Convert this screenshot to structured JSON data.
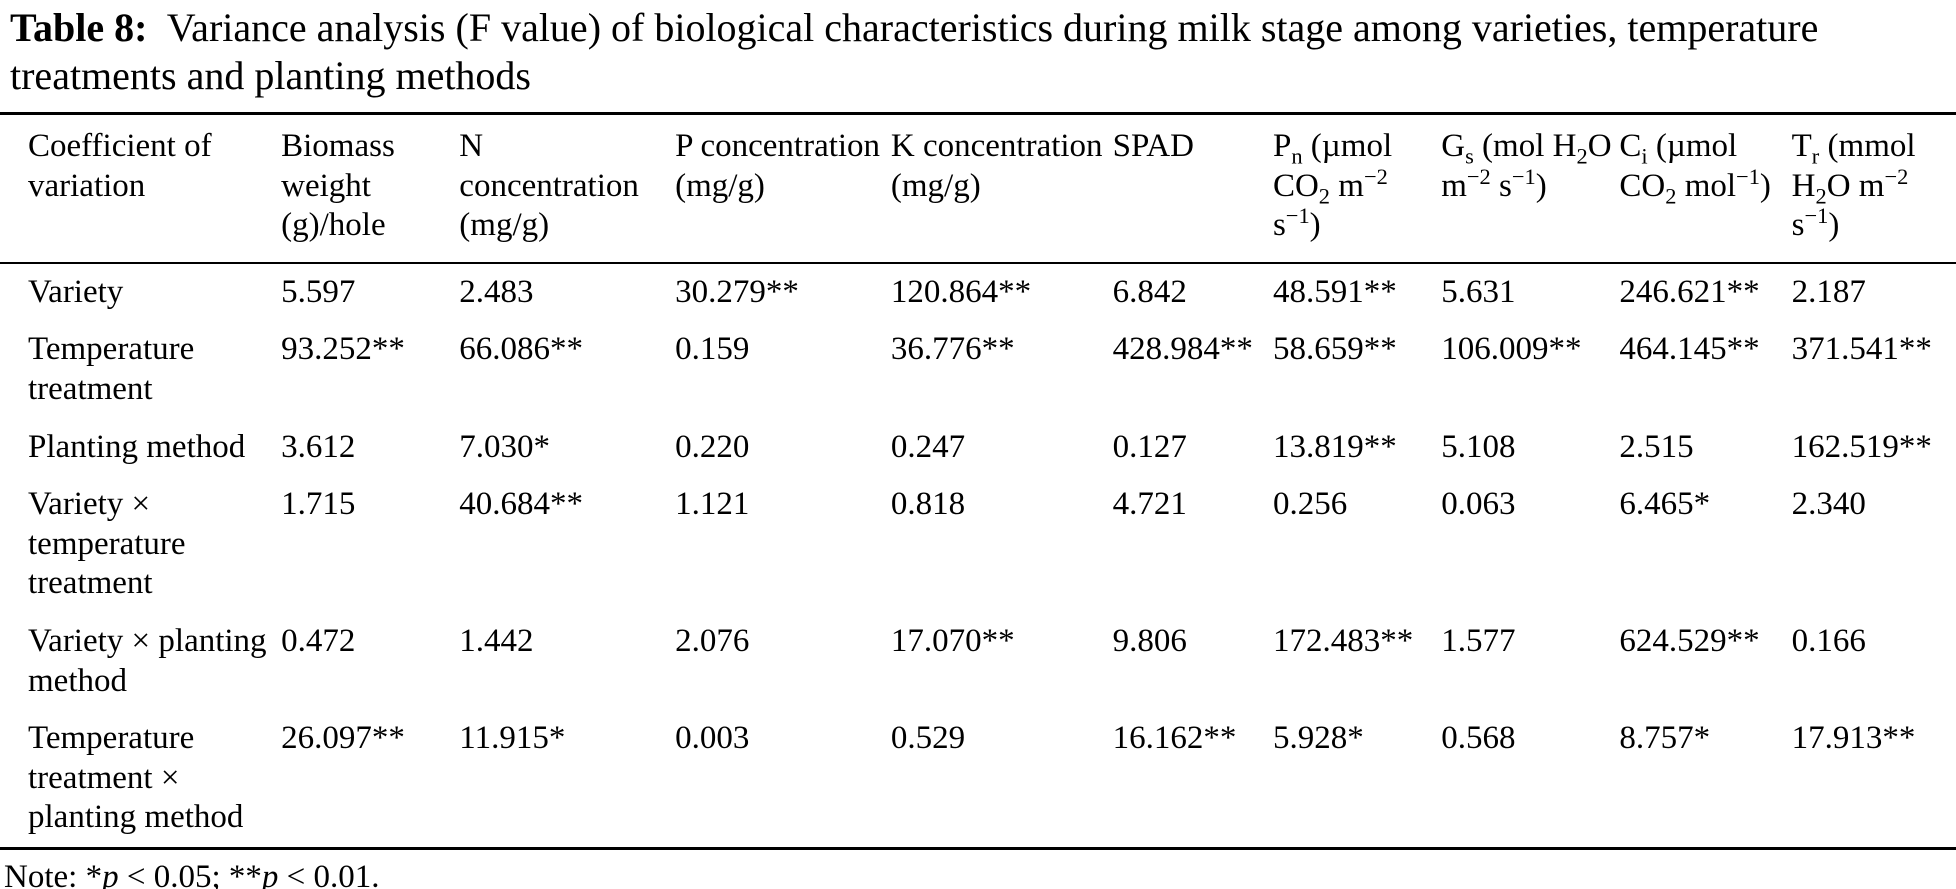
{
  "caption": {
    "parts": [
      {
        "t": "Table 8:",
        "s": "b"
      },
      {
        "t": " Variance analysis (F value) of biological characteristics during milk stage among varieties, temperature treatments and planting methods"
      }
    ]
  },
  "table": {
    "columns": [
      {
        "text": "Coefficient of variation",
        "parts": [
          {
            "t": "Coefficient of variation"
          }
        ]
      },
      {
        "text": "Biomass weight (g)/hole",
        "parts": [
          {
            "t": "Biomass weight (g)/hole"
          }
        ]
      },
      {
        "text": "N concentration (mg/g)",
        "parts": [
          {
            "t": "N concentration (mg/g)"
          }
        ]
      },
      {
        "text": "P concentration (mg/g)",
        "parts": [
          {
            "t": "P concentration (mg/g)"
          }
        ]
      },
      {
        "text": "K concentration (mg/g)",
        "parts": [
          {
            "t": "K concentration (mg/g)"
          }
        ]
      },
      {
        "text": "SPAD",
        "parts": [
          {
            "t": "SPAD"
          }
        ]
      },
      {
        "text": "Pn (µmol CO2 m−2 s−1)",
        "parts": [
          {
            "t": "P"
          },
          {
            "t": "n",
            "s": "sub"
          },
          {
            "t": " (µmol CO"
          },
          {
            "t": "2",
            "s": "sub"
          },
          {
            "t": " m"
          },
          {
            "t": "−2",
            "s": "sup"
          },
          {
            "t": " s"
          },
          {
            "t": "−1",
            "s": "sup"
          },
          {
            "t": ")"
          }
        ]
      },
      {
        "text": "Gs (mol H2O m−2 s−1)",
        "parts": [
          {
            "t": "G"
          },
          {
            "t": "s",
            "s": "sub"
          },
          {
            "t": " (mol H"
          },
          {
            "t": "2",
            "s": "sub"
          },
          {
            "t": "O m"
          },
          {
            "t": "−2",
            "s": "sup"
          },
          {
            "t": " s"
          },
          {
            "t": "−1",
            "s": "sup"
          },
          {
            "t": ")"
          }
        ]
      },
      {
        "text": "Ci (µmol CO2 mol−1)",
        "parts": [
          {
            "t": "C"
          },
          {
            "t": "i",
            "s": "sub"
          },
          {
            "t": " (µmol CO"
          },
          {
            "t": "2",
            "s": "sub"
          },
          {
            "t": " mol"
          },
          {
            "t": "−1",
            "s": "sup"
          },
          {
            "t": ")"
          }
        ]
      },
      {
        "text": "Tr (mmol H2O m−2 s−1)",
        "parts": [
          {
            "t": "T"
          },
          {
            "t": "r",
            "s": "sub"
          },
          {
            "t": " (mmol H"
          },
          {
            "t": "2",
            "s": "sub"
          },
          {
            "t": "O m"
          },
          {
            "t": "−2",
            "s": "sup"
          },
          {
            "t": " s"
          },
          {
            "t": "−1",
            "s": "sup"
          },
          {
            "t": ")"
          }
        ]
      }
    ],
    "rows": [
      {
        "label": "Variety",
        "values": [
          "5.597",
          "2.483",
          "30.279**",
          "120.864**",
          "6.842",
          "48.591**",
          "5.631",
          "246.621**",
          "2.187"
        ]
      },
      {
        "label": "Temperature treatment",
        "values": [
          "93.252**",
          "66.086**",
          "0.159",
          "36.776**",
          "428.984**",
          "58.659**",
          "106.009**",
          "464.145**",
          "371.541**"
        ]
      },
      {
        "label": "Planting method",
        "values": [
          "3.612",
          "7.030*",
          "0.220",
          "0.247",
          "0.127",
          "13.819**",
          "5.108",
          "2.515",
          "162.519**"
        ]
      },
      {
        "label": "Variety × temperature treatment",
        "values": [
          "1.715",
          "40.684**",
          "1.121",
          "0.818",
          "4.721",
          "0.256",
          "0.063",
          "6.465*",
          "2.340"
        ]
      },
      {
        "label": "Variety × planting method",
        "values": [
          "0.472",
          "1.442",
          "2.076",
          "17.070**",
          "9.806",
          "172.483**",
          "1.577",
          "624.529**",
          "0.166"
        ]
      },
      {
        "label": "Temperature treatment × planting method",
        "values": [
          "26.097**",
          "11.915*",
          "0.003",
          "0.529",
          "16.162**",
          "5.928*",
          "0.568",
          "8.757*",
          "17.913**"
        ]
      }
    ]
  },
  "note": {
    "text": "Note: *p < 0.05; **p < 0.01.",
    "parts": [
      {
        "t": "Note: *"
      },
      {
        "t": "p",
        "s": "i"
      },
      {
        "t": " < 0.05; **"
      },
      {
        "t": "p",
        "s": "i"
      },
      {
        "t": " < 0.01."
      }
    ]
  },
  "chart_data": {
    "type": "table",
    "title": "Table 8: Variance analysis (F value) of biological characteristics during milk stage among varieties, temperature treatments and planting methods",
    "columns": [
      "Coefficient of variation",
      "Biomass weight (g)/hole",
      "N concentration (mg/g)",
      "P concentration (mg/g)",
      "K concentration (mg/g)",
      "SPAD",
      "Pn (µmol CO2 m−2 s−1)",
      "Gs (mol H2O m−2 s−1)",
      "Ci (µmol CO2 mol−1)",
      "Tr (mmol H2O m−2 s−1)"
    ],
    "rows": [
      [
        "Variety",
        "5.597",
        "2.483",
        "30.279**",
        "120.864**",
        "6.842",
        "48.591**",
        "5.631",
        "246.621**",
        "2.187"
      ],
      [
        "Temperature treatment",
        "93.252**",
        "66.086**",
        "0.159",
        "36.776**",
        "428.984**",
        "58.659**",
        "106.009**",
        "464.145**",
        "371.541**"
      ],
      [
        "Planting method",
        "3.612",
        "7.030*",
        "0.220",
        "0.247",
        "0.127",
        "13.819**",
        "5.108",
        "2.515",
        "162.519**"
      ],
      [
        "Variety × temperature treatment",
        "1.715",
        "40.684**",
        "1.121",
        "0.818",
        "4.721",
        "0.256",
        "0.063",
        "6.465*",
        "2.340"
      ],
      [
        "Variety × planting method",
        "0.472",
        "1.442",
        "2.076",
        "17.070**",
        "9.806",
        "172.483**",
        "1.577",
        "624.529**",
        "0.166"
      ],
      [
        "Temperature treatment × planting method",
        "26.097**",
        "11.915*",
        "0.003",
        "0.529",
        "16.162**",
        "5.928*",
        "0.568",
        "8.757*",
        "17.913**"
      ]
    ],
    "note": "Note: *p < 0.05; **p < 0.01.",
    "significance_legend": {
      "*": "p < 0.05",
      "**": "p < 0.01"
    }
  }
}
